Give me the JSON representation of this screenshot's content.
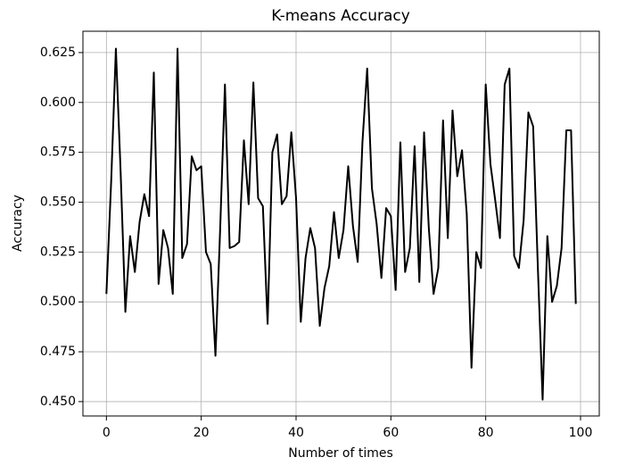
{
  "chart_data": {
    "type": "line",
    "title": "K-means Accuracy",
    "x_label": "Number of times",
    "y_label": "Accuracy",
    "x": [
      0,
      1,
      2,
      3,
      4,
      5,
      6,
      7,
      8,
      9,
      10,
      11,
      12,
      13,
      14,
      15,
      16,
      17,
      18,
      19,
      20,
      21,
      22,
      23,
      24,
      25,
      26,
      27,
      28,
      29,
      30,
      31,
      32,
      33,
      34,
      35,
      36,
      37,
      38,
      39,
      40,
      41,
      42,
      43,
      44,
      45,
      46,
      47,
      48,
      49,
      50,
      51,
      52,
      53,
      54,
      55,
      56,
      57,
      58,
      59,
      60,
      61,
      62,
      63,
      64,
      65,
      66,
      67,
      68,
      69,
      70,
      71,
      72,
      73,
      74,
      75,
      76,
      77,
      78,
      79,
      80,
      81,
      82,
      83,
      84,
      85,
      86,
      87,
      88,
      89,
      90,
      91,
      92,
      93,
      94,
      95,
      96,
      97,
      98,
      99
    ],
    "values": [
      0.504,
      0.56,
      0.627,
      0.565,
      0.495,
      0.533,
      0.515,
      0.54,
      0.554,
      0.543,
      0.615,
      0.509,
      0.536,
      0.527,
      0.504,
      0.627,
      0.522,
      0.529,
      0.573,
      0.566,
      0.568,
      0.525,
      0.519,
      0.473,
      0.537,
      0.609,
      0.527,
      0.528,
      0.53,
      0.581,
      0.549,
      0.61,
      0.552,
      0.548,
      0.489,
      0.575,
      0.584,
      0.549,
      0.553,
      0.585,
      0.552,
      0.49,
      0.522,
      0.537,
      0.527,
      0.488,
      0.507,
      0.518,
      0.545,
      0.522,
      0.536,
      0.568,
      0.538,
      0.52,
      0.58,
      0.617,
      0.557,
      0.539,
      0.512,
      0.547,
      0.543,
      0.506,
      0.58,
      0.515,
      0.527,
      0.578,
      0.51,
      0.585,
      0.537,
      0.504,
      0.517,
      0.591,
      0.532,
      0.596,
      0.563,
      0.576,
      0.544,
      0.467,
      0.525,
      0.517,
      0.609,
      0.569,
      0.551,
      0.532,
      0.609,
      0.617,
      0.523,
      0.517,
      0.541,
      0.595,
      0.588,
      0.517,
      0.451,
      0.533,
      0.5,
      0.508,
      0.527,
      0.586,
      0.586,
      0.499
    ],
    "color": "#000000",
    "grid": true,
    "xlim": [
      -4.95,
      103.95
    ],
    "xticks": [
      0,
      20,
      40,
      60,
      80,
      100
    ],
    "ylim": [
      0.4428,
      0.6357
    ],
    "yticks": [
      {
        "value": 0.45,
        "label": "0.450"
      },
      0.475,
      {
        "value": 0.5,
        "label": "0.500"
      },
      0.525,
      {
        "value": 0.55,
        "label": "0.550"
      },
      0.575,
      {
        "value": 0.6,
        "label": "0.600"
      },
      0.625
    ]
  }
}
